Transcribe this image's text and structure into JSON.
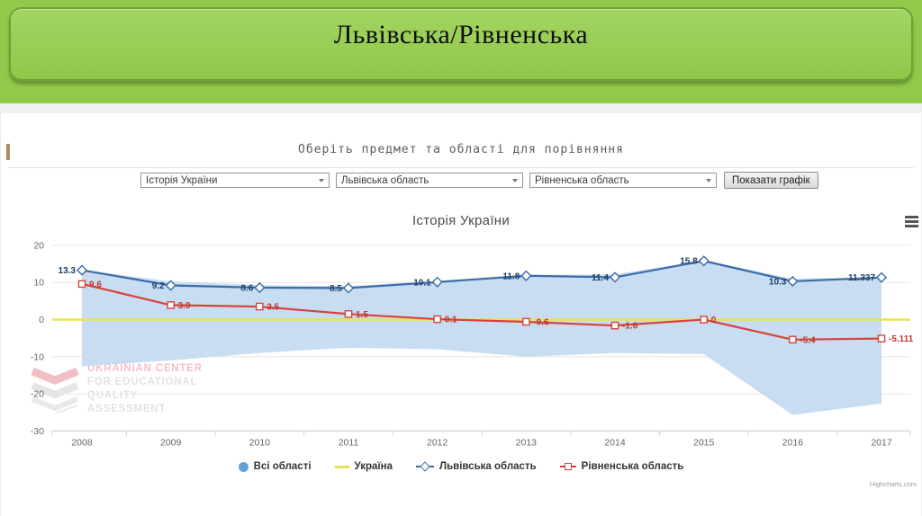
{
  "slide": {
    "title": "Львівська/Рівненська"
  },
  "picker": {
    "heading": "Оберіть предмет та області для порівняння",
    "selects": [
      {
        "name": "subject",
        "value": "Історія України"
      },
      {
        "name": "region-1",
        "value": "Львівська область"
      },
      {
        "name": "region-2",
        "value": "Рівненська область"
      }
    ],
    "show_button_label": "Показати графік"
  },
  "chart": {
    "credits": "Highcharts.com",
    "watermark_lines": [
      "UKRAINIAN CENTER",
      "FOR EDUCATIONAL",
      "QUALITY",
      "ASSESSMENT"
    ]
  },
  "chart_data": {
    "type": "line",
    "title": "Історія України",
    "x": [
      2008,
      2009,
      2010,
      2011,
      2012,
      2013,
      2014,
      2015,
      2016,
      2017
    ],
    "yticks": [
      20,
      10,
      0,
      -10,
      -20,
      -30
    ],
    "ylim": [
      -30,
      23
    ],
    "grid": true,
    "legend_position": "bottom",
    "series": [
      {
        "name": "Всі області",
        "type": "arearange",
        "color": "#c8ddf1",
        "legend_color": "#63a0d4",
        "top": [
          13.4,
          10.3,
          9.3,
          9.0,
          10.4,
          12.0,
          12.2,
          16.0,
          11.0,
          11.4
        ],
        "bottom": [
          -12.6,
          -11.0,
          -9.0,
          -7.6,
          -8.0,
          -10.0,
          -9.0,
          -9.3,
          -25.7,
          -22.6
        ]
      },
      {
        "name": "Україна",
        "type": "line",
        "color": "#e9e44e",
        "values": [
          0,
          0,
          0,
          0,
          0,
          0,
          0,
          0,
          0,
          0
        ]
      },
      {
        "name": "Львівська область",
        "type": "line",
        "color": "#3a6ca8",
        "marker": "diamond",
        "label_color": "#1e3f66",
        "label_side": "left",
        "values": [
          13.3,
          9.2,
          8.6,
          8.5,
          10.1,
          11.8,
          11.4,
          15.8,
          10.3,
          11.337
        ],
        "labels": [
          "13.3",
          "9.2",
          "8.6",
          "8.5",
          "10.1",
          "11.8",
          "11.4",
          "15.8",
          "10.3",
          "11.337"
        ]
      },
      {
        "name": "Рівненська область",
        "type": "line",
        "color": "#d5443d",
        "marker": "square",
        "label_color": "#c2372e",
        "label_side": "right",
        "values": [
          9.6,
          3.9,
          3.5,
          1.5,
          0.1,
          -0.6,
          -1.6,
          0,
          -5.4,
          -5.111
        ],
        "labels": [
          "9.6",
          "3.9",
          "3.5",
          "1.5",
          "0.1",
          "-0.6",
          "-1.6",
          "0",
          "-5.4",
          "-5.111"
        ]
      }
    ]
  }
}
